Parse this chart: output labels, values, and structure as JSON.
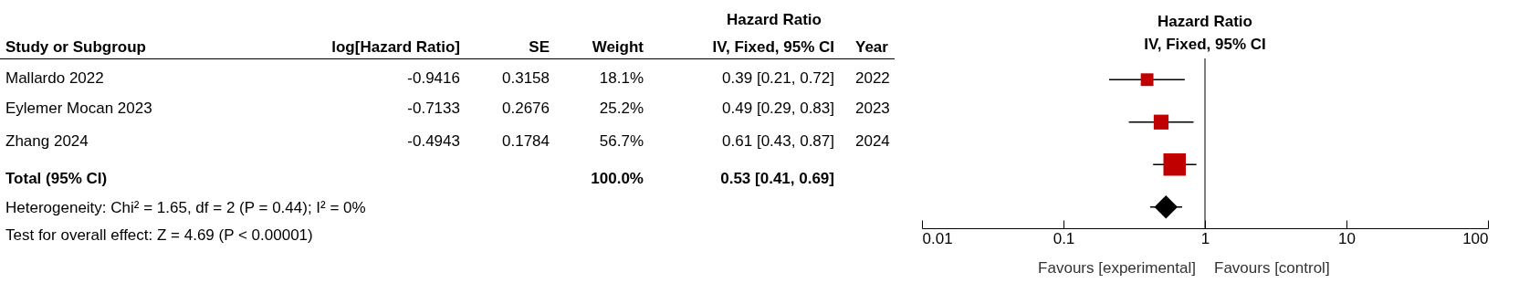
{
  "chart_data": [
    {
      "type": "other",
      "annotations": [
        "Hazard Ratio",
        "Study or Subgroup",
        "log[Hazard Ratio]",
        "SE",
        "Weight",
        "IV, Fixed, 95% CI",
        "Year",
        "Mallardo 2022",
        "-0.9416",
        "0.3158",
        "18.1%",
        "0.39 [0.21, 0.72]",
        "2022",
        "Eylemer Mocan 2023",
        "-0.7133",
        "0.2676",
        "25.2%",
        "0.49 [0.29, 0.83]",
        "2023",
        "Zhang 2024",
        "-0.4943",
        "0.1784",
        "56.7%",
        "0.61 [0.43, 0.87]",
        "2024",
        "Total (95% CI)",
        "100.0%",
        "0.53 [0.41, 0.69]",
        "Heterogeneity: Chi² = 1.65, df = 2 (P = 0.44); I² = 0%",
        "Test for overall effect: Z = 4.69 (P < 0.00001)"
      ]
    },
    {
      "type": "scatter",
      "title": "Hazard Ratio",
      "subtitle": "IV, Fixed, 95% CI",
      "orientation": "horizontal",
      "categories": [
        null,
        null,
        null,
        null
      ],
      "log": "x",
      "xlim": [
        0.01,
        100
      ],
      "xticks": [
        0.01,
        0.1,
        1,
        10,
        100
      ],
      "tick_labels": "x",
      "grid": false,
      "series": [
        {
          "type": "bubble",
          "color": "#c00000",
          "marker": "square",
          "values": [
            0.39,
            0.49,
            0.61,
            null
          ],
          "errors": [
            [
              0.21,
              0.72
            ],
            [
              0.29,
              0.83
            ],
            [
              0.43,
              0.87
            ],
            null
          ],
          "sizes": [
            0.32,
            0.44,
            1,
            null
          ]
        },
        {
          "type": "scatter",
          "color": "#000000",
          "marker": "diamond",
          "values": [
            null,
            null,
            null,
            0.53
          ],
          "errors": [
            null,
            null,
            null,
            [
              0.41,
              0.69
            ]
          ]
        }
      ],
      "ref_lines": [
        {
          "axis": "x",
          "value": 1,
          "color": "#000000"
        }
      ],
      "annotations": [
        "Favours [experimental]",
        "Favours [control]"
      ]
    }
  ]
}
